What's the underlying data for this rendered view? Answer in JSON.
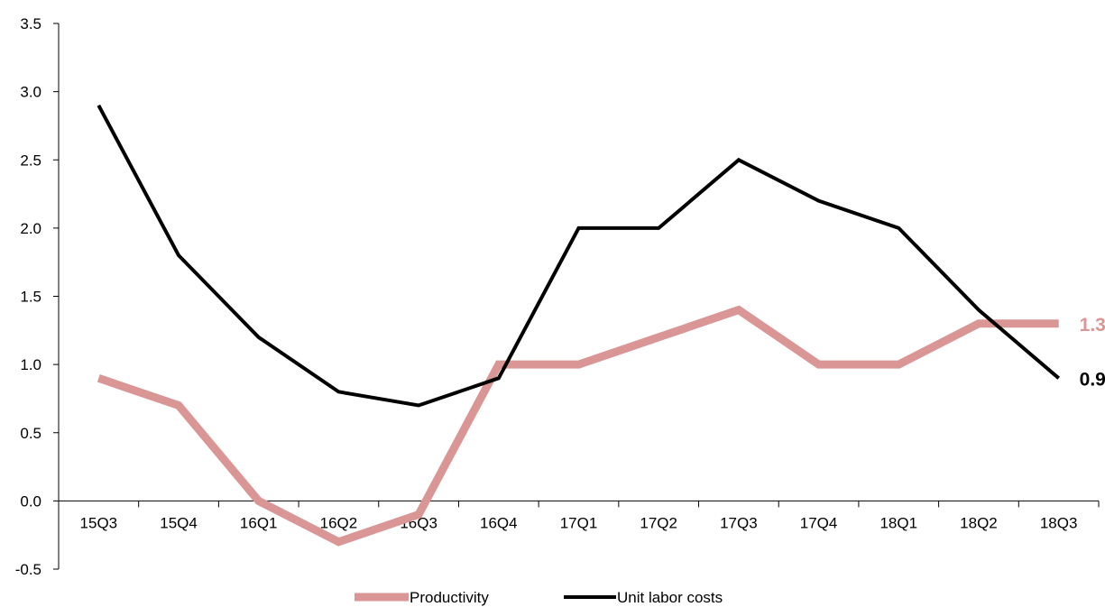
{
  "chart_data": {
    "type": "line",
    "title": "",
    "xlabel": "",
    "ylabel": "",
    "categories": [
      "15Q3",
      "15Q4",
      "16Q1",
      "16Q2",
      "16Q3",
      "16Q4",
      "17Q1",
      "17Q2",
      "17Q3",
      "17Q4",
      "18Q1",
      "18Q2",
      "18Q3"
    ],
    "ylim": [
      -0.5,
      3.5
    ],
    "yticks": [
      "-0.5",
      "0.0",
      "0.5",
      "1.0",
      "1.5",
      "2.0",
      "2.5",
      "3.0",
      "3.5"
    ],
    "grid": false,
    "legend_position": "bottom",
    "series": [
      {
        "name": "Productivity",
        "color": "#d99694",
        "values": [
          0.9,
          0.7,
          0.0,
          -0.3,
          -0.1,
          1.0,
          1.0,
          1.2,
          1.4,
          1.0,
          1.0,
          1.3,
          1.3
        ],
        "end_label": "1.3"
      },
      {
        "name": "Unit labor costs",
        "color": "#000000",
        "values": [
          2.9,
          1.8,
          1.2,
          0.8,
          0.7,
          0.9,
          2.0,
          2.0,
          2.5,
          2.2,
          2.0,
          1.4,
          0.9
        ],
        "end_label": "0.9"
      }
    ]
  }
}
